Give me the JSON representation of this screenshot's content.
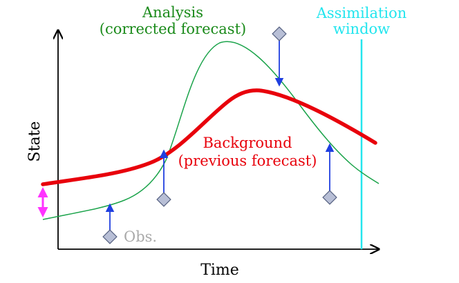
{
  "labels": {
    "xlabel": "Time",
    "ylabel": "State",
    "analysis_line1": "Analysis",
    "analysis_line2": "(corrected forecast)",
    "background_line1": "Background",
    "background_line2": "(previous forecast)",
    "window_line1": "Assimilation",
    "window_line2": "window",
    "obs": "Obs."
  },
  "colors": {
    "axes": "#000000",
    "background_curve": "#e8000b",
    "analysis_curve": "#1aa34a",
    "analysis_text": "#1a8a1a",
    "window": "#22e5ee",
    "obs_arrow": "#1f3fe0",
    "obs_marker_fill": "#b8bfd6",
    "obs_marker_stroke": "#556080",
    "obs_text": "#aaaaaa",
    "initial_arrow": "#ff33ff"
  },
  "icons": {
    "observation": "diamond-marker-icon",
    "correction": "double-arrow-icon"
  }
}
